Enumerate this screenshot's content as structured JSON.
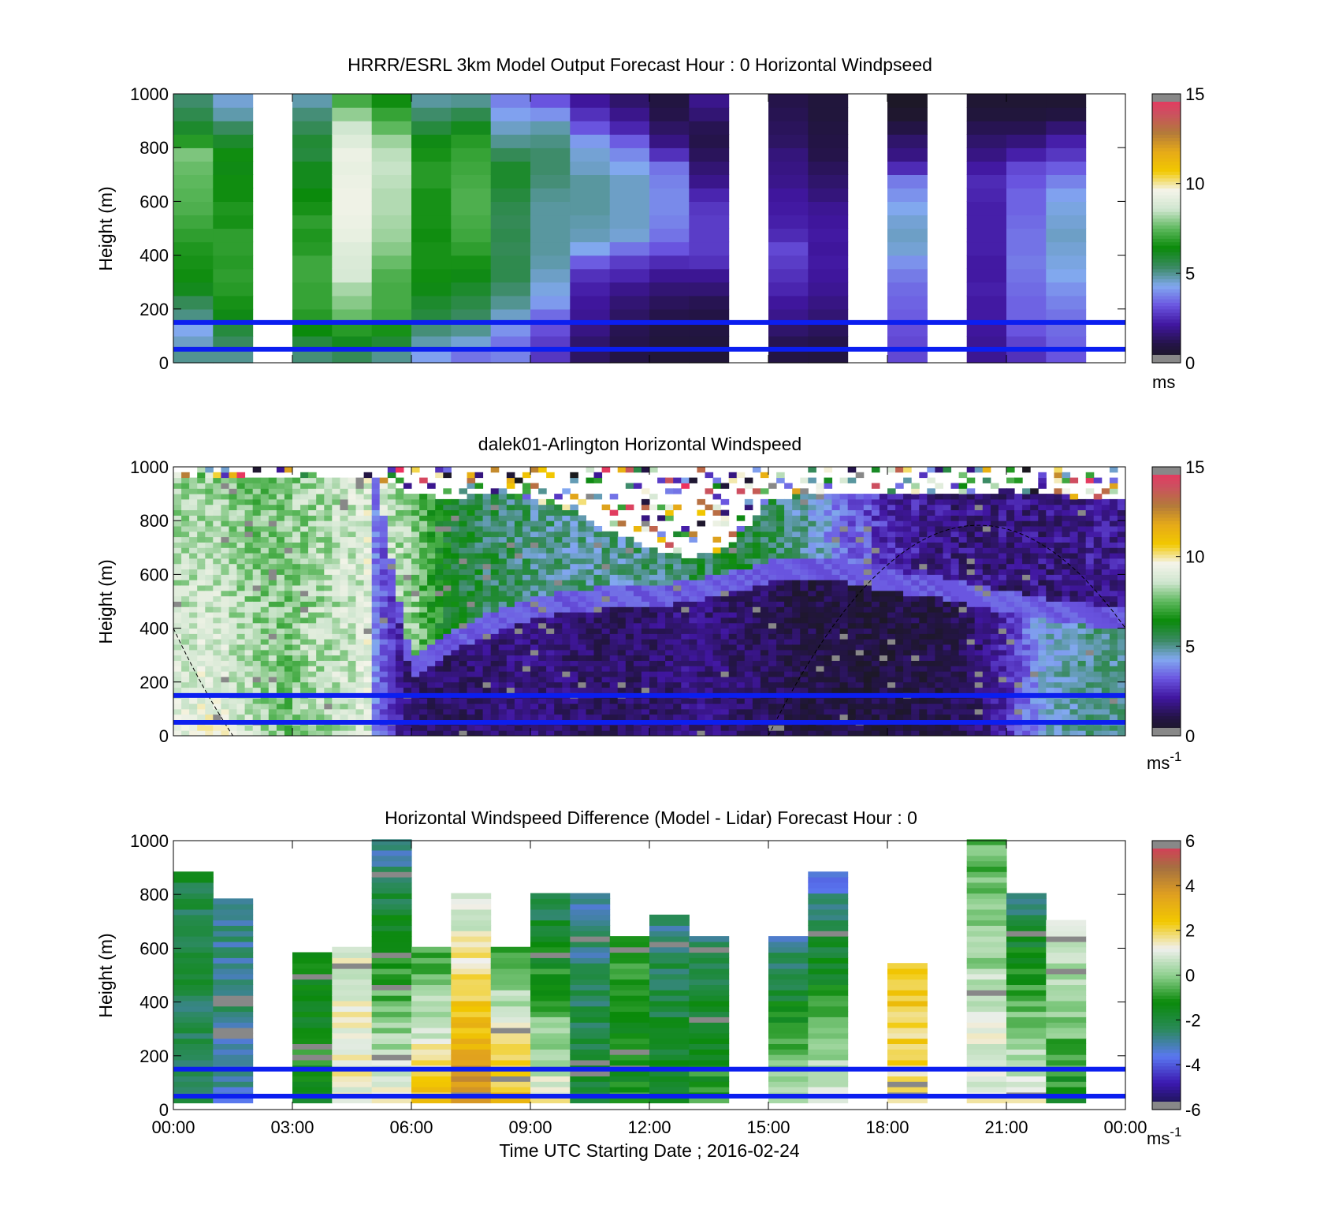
{
  "chart_data": [
    {
      "type": "heatmap",
      "title": "HRRR/ESRL 3km Model Output   Forecast Hour : 0 Horizontal Windpseed",
      "ylabel": "Height (m)",
      "ylim": [
        0,
        1000
      ],
      "xlim": [
        0,
        24
      ],
      "yticks": [
        "0",
        "200",
        "400",
        "600",
        "800",
        "1000"
      ],
      "colorbar": {
        "range": [
          0,
          15
        ],
        "ticks": [
          "0",
          "5",
          "10",
          "15"
        ],
        "unit_label": "ms"
      },
      "hlines": [
        50,
        150
      ],
      "column_hours": [
        0,
        1,
        2,
        3,
        4,
        5,
        6,
        7,
        8,
        9,
        10,
        11,
        12,
        13,
        14,
        15,
        16,
        17,
        18,
        19,
        20,
        21,
        22,
        23
      ],
      "levels_m": [
        25,
        75,
        125,
        175,
        225,
        275,
        325,
        375,
        425,
        475,
        525,
        575,
        625,
        675,
        725,
        775,
        825,
        875,
        925,
        975
      ],
      "values": [
        [
          5.0,
          4.6,
          4.3,
          5.1,
          5.5,
          6.2,
          6.5,
          6.6,
          6.7,
          6.9,
          7.1,
          7.3,
          7.4,
          7.5,
          7.6,
          7.8,
          6.8,
          6.0,
          5.6,
          5.3
        ],
        [
          5.0,
          5.4,
          5.8,
          6.3,
          6.6,
          6.8,
          6.9,
          6.8,
          6.9,
          6.9,
          6.6,
          6.7,
          6.5,
          6.5,
          6.3,
          6.5,
          6.0,
          5.4,
          4.8,
          4.5
        ],
        null,
        [
          5.2,
          5.8,
          6.4,
          6.8,
          7.0,
          7.0,
          7.1,
          7.1,
          6.8,
          6.7,
          6.9,
          6.6,
          6.4,
          6.2,
          6.2,
          5.8,
          5.9,
          5.5,
          5.2,
          4.8
        ],
        [
          5.5,
          6.2,
          6.8,
          7.6,
          7.9,
          8.2,
          8.8,
          8.9,
          9.0,
          9.3,
          9.4,
          9.5,
          9.5,
          9.4,
          9.3,
          9.4,
          9.0,
          8.6,
          8.0,
          7.2
        ],
        [
          5.0,
          5.9,
          6.6,
          7.1,
          7.2,
          7.2,
          7.3,
          7.6,
          7.9,
          8.1,
          8.2,
          8.3,
          8.3,
          8.4,
          8.5,
          8.4,
          8.1,
          7.5,
          7.0,
          6.5
        ],
        [
          4.2,
          4.8,
          5.2,
          5.8,
          6.0,
          6.3,
          6.5,
          6.6,
          6.6,
          6.5,
          6.6,
          6.6,
          6.6,
          6.8,
          6.8,
          6.6,
          6.3,
          5.8,
          5.3,
          4.9
        ],
        [
          3.6,
          4.5,
          5.0,
          5.4,
          5.7,
          6.0,
          6.3,
          6.6,
          6.9,
          7.1,
          7.2,
          7.3,
          7.3,
          7.2,
          7.1,
          7.0,
          6.8,
          6.2,
          5.6,
          5.0
        ],
        [
          3.8,
          3.6,
          4.0,
          4.6,
          5.0,
          5.3,
          5.6,
          5.6,
          5.5,
          5.6,
          5.5,
          5.6,
          5.8,
          6.0,
          6.0,
          5.5,
          5.0,
          4.6,
          4.2,
          3.8
        ],
        [
          2.7,
          2.8,
          3.1,
          3.5,
          4.1,
          4.4,
          4.6,
          4.8,
          4.9,
          4.9,
          4.9,
          4.9,
          5.0,
          5.2,
          5.3,
          5.3,
          5.1,
          4.8,
          4.0,
          3.2
        ],
        [
          1.4,
          1.5,
          1.8,
          2.0,
          2.1,
          2.3,
          2.6,
          3.3,
          4.3,
          4.7,
          4.8,
          4.9,
          4.9,
          4.9,
          4.6,
          4.5,
          4.1,
          3.2,
          2.6,
          2.1
        ],
        [
          1.0,
          1.1,
          1.2,
          1.4,
          1.6,
          1.9,
          2.4,
          2.8,
          3.6,
          4.5,
          4.6,
          4.6,
          4.6,
          4.6,
          4.3,
          3.9,
          3.3,
          2.4,
          1.9,
          1.5
        ],
        [
          0.7,
          0.8,
          0.9,
          1.1,
          1.3,
          1.6,
          2.0,
          2.5,
          3.2,
          3.6,
          3.8,
          3.9,
          3.9,
          3.8,
          3.6,
          2.6,
          1.8,
          1.4,
          1.1,
          0.9
        ],
        [
          0.7,
          0.8,
          0.9,
          1.0,
          1.2,
          1.6,
          2.0,
          2.6,
          2.8,
          2.8,
          2.8,
          2.7,
          2.4,
          1.9,
          1.6,
          1.3,
          1.1,
          1.2,
          1.6,
          1.9
        ],
        null,
        [
          1.0,
          1.2,
          1.5,
          1.9,
          2.1,
          2.4,
          2.6,
          2.8,
          3.0,
          2.5,
          2.3,
          2.2,
          2.1,
          1.9,
          1.8,
          1.7,
          1.4,
          1.3,
          1.2,
          1.1
        ],
        [
          0.9,
          1.1,
          1.3,
          1.6,
          1.8,
          2.0,
          2.1,
          2.2,
          2.1,
          2.2,
          2.1,
          2.0,
          1.7,
          1.5,
          1.3,
          1.1,
          1.0,
          0.9,
          0.8,
          0.8
        ],
        null,
        [
          3.0,
          3.0,
          3.1,
          3.3,
          3.4,
          3.5,
          3.7,
          4.0,
          4.5,
          4.6,
          4.5,
          4.3,
          4.0,
          3.7,
          2.5,
          1.8,
          1.5,
          1.0,
          0.5,
          0.3
        ],
        null,
        [
          2.0,
          2.0,
          2.1,
          2.2,
          2.2,
          2.3,
          2.2,
          2.2,
          2.3,
          2.3,
          2.3,
          2.3,
          2.4,
          2.5,
          2.2,
          1.8,
          1.5,
          1.2,
          0.8,
          0.6
        ],
        [
          2.6,
          2.9,
          3.2,
          3.4,
          3.4,
          3.5,
          3.6,
          3.7,
          3.6,
          3.6,
          3.5,
          3.4,
          3.4,
          3.2,
          3.0,
          2.3,
          1.7,
          1.2,
          0.8,
          0.6
        ],
        [
          3.2,
          3.4,
          3.5,
          3.6,
          3.8,
          4.0,
          4.3,
          4.4,
          4.5,
          4.6,
          4.5,
          4.4,
          4.2,
          3.8,
          3.3,
          2.7,
          2.3,
          1.6,
          0.9,
          0.6
        ],
        null
      ]
    },
    {
      "type": "heatmap",
      "title": "dalek01-Arlington  Horizontal Windspeed",
      "ylabel": "Height (m)",
      "ylim": [
        0,
        1000
      ],
      "xlim": [
        0,
        24
      ],
      "yticks": [
        "0",
        "200",
        "400",
        "600",
        "800",
        "1000"
      ],
      "colorbar": {
        "range": [
          0,
          15
        ],
        "ticks": [
          "0",
          "5",
          "10",
          "15"
        ],
        "unit_label": "ms-1"
      },
      "hlines": [
        50,
        150
      ],
      "time_hours": [
        0,
        1,
        2,
        3,
        4,
        5,
        6,
        7,
        8,
        9,
        10,
        11,
        12,
        13,
        14,
        15,
        16,
        17,
        18,
        19,
        20,
        21,
        22,
        23,
        24
      ],
      "speed_lower_ms": [
        9,
        9.5,
        8.5,
        7.5,
        6.5,
        4,
        1.5,
        1.4,
        1.6,
        1.8,
        1.6,
        1.4,
        1.5,
        1.8,
        1.6,
        1.3,
        1.0,
        0.9,
        0.9,
        1.0,
        1.2,
        2.5,
        4.5,
        5,
        5
      ],
      "speed_upper_ms": [
        8,
        8,
        7.5,
        8,
        8.5,
        9,
        8,
        6,
        5.5,
        5.2,
        5,
        5,
        5.2,
        5.5,
        5.8,
        5.5,
        4.8,
        3.5,
        2.5,
        2,
        1.8,
        1.8,
        1.8,
        2,
        2
      ],
      "transition_height_m": [
        1000,
        1000,
        1000,
        1000,
        1000,
        1000,
        240,
        350,
        420,
        470,
        500,
        520,
        520,
        540,
        570,
        610,
        630,
        610,
        580,
        560,
        530,
        500,
        470,
        450,
        430
      ],
      "top_of_data_m": [
        960,
        960,
        960,
        960,
        960,
        970,
        900,
        880,
        900,
        880,
        840,
        760,
        700,
        660,
        700,
        870,
        900,
        900,
        900,
        900,
        900,
        900,
        900,
        880,
        880
      ]
    },
    {
      "type": "heatmap",
      "title": "Horizontal Windspeed Difference (Model - Lidar) Forecast Hour : 0",
      "xlabel": "Time UTC  Starting Date ; 2016-02-24",
      "ylabel": "Height (m)",
      "ylim": [
        0,
        1000
      ],
      "xlim": [
        0,
        24
      ],
      "yticks": [
        "0",
        "200",
        "400",
        "600",
        "800",
        "1000"
      ],
      "xticks": [
        "00:00",
        "03:00",
        "06:00",
        "09:00",
        "12:00",
        "15:00",
        "18:00",
        "21:00",
        "00:00"
      ],
      "colorbar": {
        "range": [
          -6,
          6
        ],
        "ticks": [
          "-6",
          "-4",
          "-2",
          "0",
          "2",
          "4",
          "6"
        ],
        "unit_label": "ms-1"
      },
      "hlines": [
        50,
        150
      ],
      "columns": [
        {
          "hour": 0,
          "top": 880,
          "bottom": -2.3,
          "top_value": -2.0
        },
        {
          "hour": 1,
          "top": 780,
          "bottom": -3.0,
          "top_value": -2.6
        },
        {
          "hour": 3,
          "top": 570,
          "bottom": -1.2,
          "top_value": -1.3
        },
        {
          "hour": 4,
          "top": 600,
          "bottom": 1.3,
          "top_value": 1.0
        },
        {
          "hour": 5,
          "top": 1000,
          "bottom": 1.2,
          "top_value": -3.0
        },
        {
          "hour": 6,
          "top": 600,
          "bottom": 2.5,
          "top_value": -1.0
        },
        {
          "hour": 7,
          "top": 800,
          "bottom": 4.0,
          "top_value": 0.4
        },
        {
          "hour": 8,
          "top": 600,
          "bottom": 2.6,
          "top_value": -0.6
        },
        {
          "hour": 9,
          "top": 790,
          "bottom": 1.2,
          "top_value": -2.5
        },
        {
          "hour": 10,
          "top": 790,
          "bottom": -1.5,
          "top_value": -3.2
        },
        {
          "hour": 11,
          "top": 630,
          "bottom": -1.2,
          "top_value": -1.0
        },
        {
          "hour": 12,
          "top": 720,
          "bottom": -1.2,
          "top_value": -2.7
        },
        {
          "hour": 13,
          "top": 630,
          "bottom": -0.8,
          "top_value": -2.5
        },
        {
          "hour": 15,
          "top": 630,
          "bottom": 0.6,
          "top_value": -3.0
        },
        {
          "hour": 16,
          "top": 880,
          "bottom": 1.2,
          "top_value": -3.5
        },
        {
          "hour": 18,
          "top": 530,
          "bottom": 1.7,
          "top_value": 2.5
        },
        {
          "hour": 20,
          "top": 1000,
          "bottom": 1.3,
          "top_value": -0.6
        },
        {
          "hour": 21,
          "top": 790,
          "bottom": 1.1,
          "top_value": -2.5
        },
        {
          "hour": 22,
          "top": 690,
          "bottom": -1.3,
          "top_value": 1.2
        }
      ]
    }
  ],
  "panels": [
    {
      "title": "HRRR/ESRL 3km Model Output   Forecast Hour : 0 Horizontal Windpseed",
      "ylabel": "Height (m)",
      "cb_unit": "ms"
    },
    {
      "title": "dalek01-Arlington  Horizontal Windspeed",
      "ylabel": "Height (m)",
      "cb_unit": "ms",
      "cb_unit_sup": "-1"
    },
    {
      "title": "Horizontal Windspeed Difference (Model - Lidar) Forecast Hour : 0",
      "ylabel": "Height (m)",
      "cb_unit": "ms",
      "cb_unit_sup": "-1"
    }
  ],
  "yticks": [
    "0",
    "200",
    "400",
    "600",
    "800",
    "1000"
  ],
  "speed_cb_ticks": [
    "0",
    "5",
    "10",
    "15"
  ],
  "diff_cb_ticks": [
    "-6",
    "-4",
    "-2",
    "0",
    "2",
    "4",
    "6"
  ],
  "xticks": [
    "00:00",
    "03:00",
    "06:00",
    "09:00",
    "12:00",
    "15:00",
    "18:00",
    "21:00",
    "00:00"
  ],
  "xlabel": "Time UTC  Starting Date ; 2016-02-24",
  "colors": {
    "hline": "#0b1ef0",
    "missing": "#888888",
    "speed_colormap": [
      "#1a1a1a",
      "#241448",
      "#40169f",
      "#6a55e0",
      "#82a8f0",
      "#3a8a62",
      "#0a8a0a",
      "#5db85d",
      "#cfe6cf",
      "#f4f4ea",
      "#f2c800",
      "#e6aa18",
      "#b37a3a",
      "#cc5060",
      "#f03060"
    ],
    "diff_colormap": [
      "#15153a",
      "#3b18b0",
      "#5a78f0",
      "#2a8a5a",
      "#0a8a0a",
      "#8fd08f",
      "#f0f0ee",
      "#f2c800",
      "#e0a020",
      "#a57040",
      "#e23060"
    ]
  }
}
